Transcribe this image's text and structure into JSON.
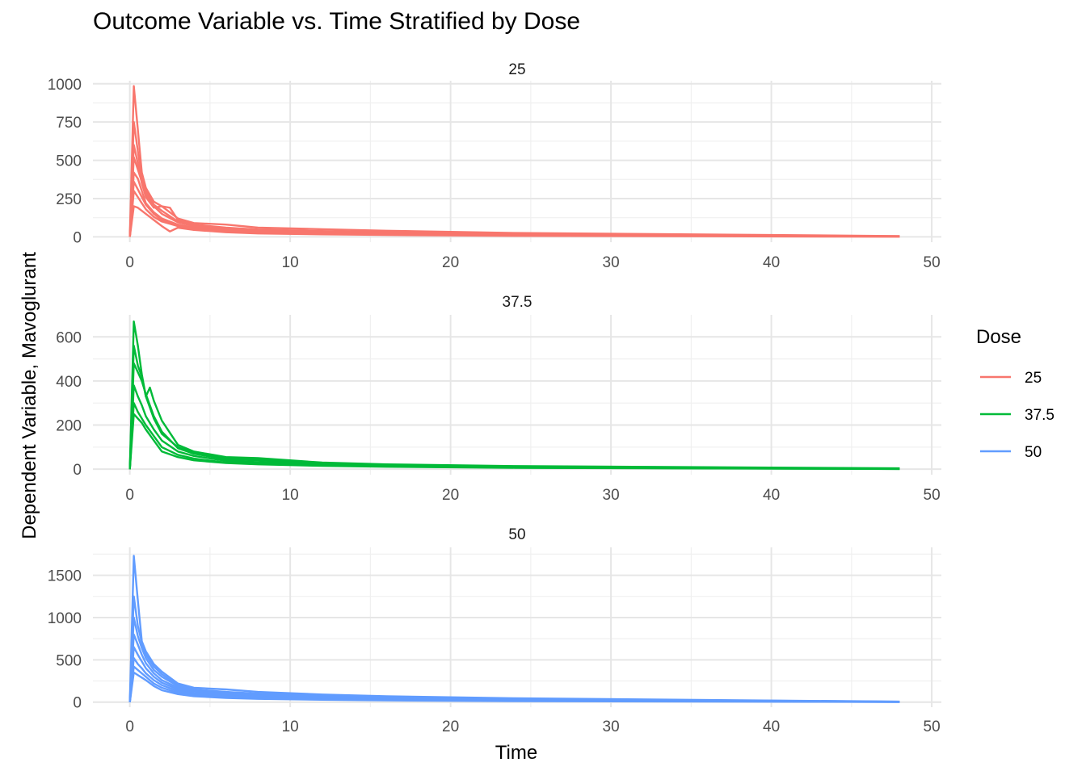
{
  "chart_data": {
    "type": "line",
    "title": "Outcome Variable vs. Time Stratified by Dose",
    "xlabel": "Time",
    "ylabel": "Dependent Variable, Mavoglurant",
    "xlim": [
      -2.3,
      50.6
    ],
    "x_ticks": [
      0,
      10,
      20,
      30,
      40,
      50
    ],
    "grid": true,
    "legend": {
      "title": "Dose",
      "position": "right",
      "entries": [
        {
          "name": "25",
          "color": "#F8766D"
        },
        {
          "name": "37.5",
          "color": "#00BA38"
        },
        {
          "name": "50",
          "color": "#619CFF"
        }
      ]
    },
    "facets": [
      {
        "label": "25",
        "color": "#F8766D",
        "ylim": [
          -35,
          1020
        ],
        "y_ticks": [
          0,
          250,
          500,
          750,
          1000
        ],
        "series": [
          {
            "x": [
              0,
              0.25,
              0.5,
              0.75,
              1,
              1.5,
              2,
              3,
              4,
              6,
              8,
              12,
              16,
              24,
              48
            ],
            "y": [
              0,
              985,
              700,
              420,
              320,
              230,
              200,
              120,
              90,
              80,
              60,
              50,
              40,
              25,
              5
            ]
          },
          {
            "x": [
              0,
              0.25,
              0.5,
              0.75,
              1,
              1.5,
              2,
              3,
              4,
              6,
              8,
              12,
              16,
              24,
              48
            ],
            "y": [
              0,
              750,
              560,
              380,
              300,
              210,
              170,
              100,
              75,
              55,
              45,
              35,
              28,
              15,
              3
            ]
          },
          {
            "x": [
              0,
              0.25,
              0.5,
              0.75,
              1,
              1.5,
              2,
              2.5,
              3,
              4,
              6,
              8,
              12,
              16,
              24,
              48
            ],
            "y": [
              0,
              600,
              480,
              350,
              260,
              190,
              200,
              190,
              110,
              80,
              60,
              48,
              38,
              30,
              18,
              4
            ]
          },
          {
            "x": [
              0,
              0.25,
              0.5,
              0.75,
              1,
              1.5,
              2,
              3,
              4,
              6,
              8,
              12,
              16,
              24,
              48
            ],
            "y": [
              0,
              420,
              380,
              300,
              220,
              160,
              120,
              80,
              60,
              45,
              35,
              28,
              22,
              12,
              2
            ]
          },
          {
            "x": [
              0,
              0.25,
              0.5,
              0.75,
              1,
              1.5,
              2,
              3,
              4,
              6,
              8,
              12,
              16,
              24
            ],
            "y": [
              0,
              300,
              260,
              220,
              180,
              130,
              100,
              70,
              50,
              35,
              28,
              20,
              15,
              8
            ]
          },
          {
            "x": [
              0,
              0.25,
              0.5,
              0.75,
              1,
              1.5,
              2,
              2.5,
              3,
              4,
              6,
              8,
              12,
              16,
              24,
              48
            ],
            "y": [
              0,
              200,
              190,
              170,
              150,
              110,
              70,
              35,
              60,
              45,
              30,
              22,
              16,
              12,
              6,
              1
            ]
          },
          {
            "x": [
              0,
              0.25,
              0.5,
              0.75,
              1,
              1.5,
              2,
              3,
              4,
              6,
              8,
              12,
              16,
              24,
              48
            ],
            "y": [
              0,
              520,
              440,
              360,
              280,
              200,
              150,
              95,
              70,
              50,
              38,
              30,
              24,
              14,
              3
            ]
          },
          {
            "x": [
              0,
              0.25,
              0.5,
              0.75,
              1,
              1.5,
              2,
              3,
              4,
              6,
              8,
              12,
              16,
              24
            ],
            "y": [
              0,
              360,
              310,
              260,
              210,
              150,
              110,
              75,
              55,
              40,
              30,
              22,
              17,
              9
            ]
          }
        ]
      },
      {
        "label": "37.5",
        "color": "#00BA38",
        "ylim": [
          -25,
          700
        ],
        "y_ticks": [
          0,
          200,
          400,
          600
        ],
        "series": [
          {
            "x": [
              0,
              0.25,
              0.5,
              0.75,
              1,
              1.5,
              2,
              3,
              4,
              6,
              8,
              12,
              16,
              24,
              48
            ],
            "y": [
              0,
              670,
              560,
              430,
              330,
              230,
              160,
              100,
              75,
              48,
              45,
              28,
              20,
              12,
              3
            ]
          },
          {
            "x": [
              0,
              0.25,
              0.5,
              0.75,
              1,
              1.25,
              1.5,
              2,
              3,
              4,
              6,
              8,
              12,
              16,
              24,
              48
            ],
            "y": [
              0,
              560,
              470,
              420,
              330,
              370,
              310,
              220,
              110,
              80,
              55,
              50,
              30,
              22,
              14,
              4
            ]
          },
          {
            "x": [
              0,
              0.25,
              0.5,
              0.75,
              1,
              1.5,
              2,
              3,
              4,
              6,
              8,
              12,
              16,
              24,
              48
            ],
            "y": [
              0,
              480,
              440,
              400,
              340,
              240,
              170,
              95,
              70,
              45,
              40,
              25,
              18,
              10,
              2
            ]
          },
          {
            "x": [
              0,
              0.25,
              0.5,
              0.75,
              1,
              1.5,
              2,
              3,
              4,
              6,
              8,
              12,
              16,
              24,
              48
            ],
            "y": [
              0,
              380,
              330,
              290,
              240,
              180,
              130,
              80,
              60,
              38,
              32,
              22,
              16,
              9,
              2
            ]
          },
          {
            "x": [
              0,
              0.25,
              0.5,
              0.75,
              1,
              1.5,
              2,
              3,
              4,
              6,
              8,
              12,
              16,
              24,
              48
            ],
            "y": [
              0,
              300,
              260,
              230,
              200,
              150,
              100,
              65,
              48,
              30,
              28,
              18,
              13,
              7,
              1
            ]
          },
          {
            "x": [
              0,
              0.25,
              0.5,
              0.75,
              1,
              1.5,
              2,
              3,
              4,
              6,
              8,
              12,
              16,
              24,
              48
            ],
            "y": [
              0,
              250,
              230,
              210,
              180,
              130,
              80,
              55,
              40,
              28,
              22,
              15,
              11,
              6,
              1
            ]
          }
        ]
      },
      {
        "label": "50",
        "color": "#619CFF",
        "ylim": [
          -60,
          1830
        ],
        "y_ticks": [
          0,
          500,
          1000,
          1500
        ],
        "series": [
          {
            "x": [
              0,
              0.25,
              0.5,
              0.75,
              1,
              1.5,
              2,
              3,
              4,
              6,
              8,
              12,
              16,
              24,
              48
            ],
            "y": [
              0,
              1730,
              1200,
              720,
              600,
              450,
              360,
              220,
              170,
              150,
              120,
              90,
              70,
              45,
              6
            ]
          },
          {
            "x": [
              0,
              0.25,
              0.5,
              0.75,
              1,
              1.5,
              2,
              3,
              4,
              6,
              8,
              12,
              16,
              24,
              48
            ],
            "y": [
              0,
              1250,
              900,
              700,
              560,
              420,
              330,
              200,
              150,
              120,
              100,
              75,
              58,
              38,
              5
            ]
          },
          {
            "x": [
              0,
              0.25,
              0.5,
              0.75,
              1,
              1.5,
              2,
              3,
              4,
              6,
              8,
              12,
              16,
              24,
              48
            ],
            "y": [
              0,
              1000,
              780,
              640,
              520,
              380,
              300,
              190,
              145,
              110,
              90,
              68,
              50,
              32,
              4
            ]
          },
          {
            "x": [
              0,
              0.25,
              0.5,
              0.75,
              1,
              1.5,
              2,
              3,
              4,
              6,
              8,
              12,
              16,
              24
            ],
            "y": [
              0,
              800,
              680,
              560,
              460,
              340,
              260,
              170,
              130,
              95,
              75,
              55,
              42,
              25
            ]
          },
          {
            "x": [
              0,
              0.25,
              0.5,
              0.75,
              1,
              1.5,
              2,
              3,
              4,
              6,
              8,
              12,
              16,
              24,
              48
            ],
            "y": [
              0,
              650,
              560,
              480,
              400,
              300,
              230,
              150,
              110,
              80,
              62,
              45,
              35,
              20,
              3
            ]
          },
          {
            "x": [
              0,
              0.25,
              0.5,
              0.75,
              1,
              1.5,
              2,
              3,
              4,
              6,
              8,
              12,
              16,
              24,
              48
            ],
            "y": [
              0,
              520,
              450,
              400,
              340,
              260,
              200,
              130,
              95,
              70,
              55,
              40,
              30,
              18,
              2
            ]
          },
          {
            "x": [
              0,
              0.25,
              0.5,
              0.75,
              1,
              1.5,
              2,
              3,
              4,
              6,
              8,
              12,
              16,
              24
            ],
            "y": [
              0,
              420,
              380,
              340,
              300,
              220,
              170,
              110,
              80,
              60,
              45,
              32,
              24,
              14
            ]
          },
          {
            "x": [
              0,
              0.25,
              0.5,
              0.75,
              1,
              1.5,
              2,
              3,
              4,
              6,
              8,
              12,
              16,
              24,
              48
            ],
            "y": [
              0,
              350,
              320,
              290,
              260,
              190,
              140,
              95,
              70,
              50,
              38,
              28,
              20,
              12,
              2
            ]
          }
        ]
      }
    ]
  }
}
